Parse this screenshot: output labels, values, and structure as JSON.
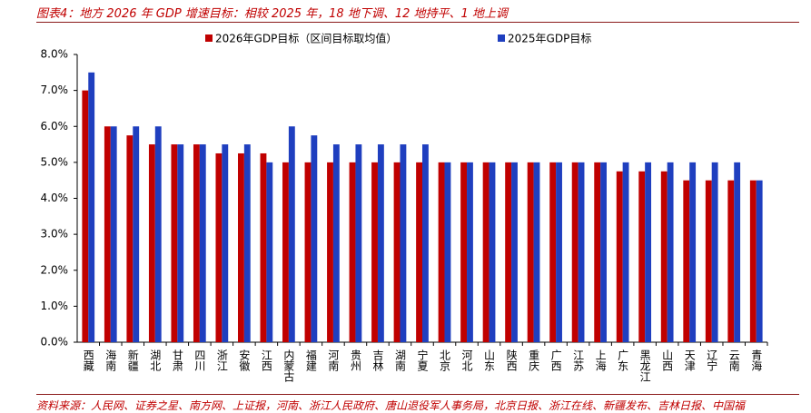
{
  "chart_data": {
    "type": "bar",
    "title": "图表4：地方 2026 年 GDP 增速目标：相较 2025 年，18 地下调、12 地持平、1 地上调",
    "source": "资料来源：人民网、证券之星、南方网、上证报，河南、浙江人民政府、唐山退役军人事务局，北京日报、浙江在线、新疆发布、吉林日报、中国福",
    "categories": [
      "西藏",
      "海南",
      "新疆",
      "湖北",
      "甘肃",
      "四川",
      "浙江",
      "安徽",
      "江西",
      "内蒙古",
      "福建",
      "河南",
      "贵州",
      "吉林",
      "湖南",
      "宁夏",
      "北京",
      "河北",
      "山东",
      "陕西",
      "重庆",
      "广西",
      "江苏",
      "上海",
      "广东",
      "黑龙江",
      "山西",
      "天津",
      "辽宁",
      "云南",
      "青海"
    ],
    "series": [
      {
        "name": "2026年GDP目标（区间目标取均值）",
        "color": "#c00000",
        "values": [
          7,
          6,
          5.75,
          5.5,
          5.5,
          5.5,
          5.25,
          5.25,
          5.25,
          5,
          5,
          5,
          5,
          5,
          5,
          5,
          5,
          5,
          5,
          5,
          5,
          5,
          5,
          5,
          4.75,
          4.75,
          4.75,
          4.5,
          4.5,
          4.5,
          4.5
        ]
      },
      {
        "name": "2025年GDP目标",
        "color": "#1f3fbf",
        "values": [
          7.5,
          6,
          6,
          6,
          5.5,
          5.5,
          5.5,
          5.5,
          5,
          6,
          5.75,
          5.5,
          5.5,
          5.5,
          5.5,
          5.5,
          5,
          5,
          5,
          5,
          5,
          5,
          5,
          5,
          5,
          5,
          5,
          5,
          5,
          5,
          4.5
        ]
      }
    ],
    "ylim": [
      0,
      8
    ],
    "yticks": [
      {
        "value": 0,
        "label": "0.0%"
      },
      {
        "value": 1,
        "label": "1.0%"
      },
      {
        "value": 2,
        "label": "2.0%"
      },
      {
        "value": 3,
        "label": "3.0%"
      },
      {
        "value": 4,
        "label": "4.0%"
      },
      {
        "value": 5,
        "label": "5.0%"
      },
      {
        "value": 6,
        "label": "6.0%"
      },
      {
        "value": 7,
        "label": "7.0%"
      },
      {
        "value": 8,
        "label": "8.0%"
      }
    ],
    "grid": false
  }
}
